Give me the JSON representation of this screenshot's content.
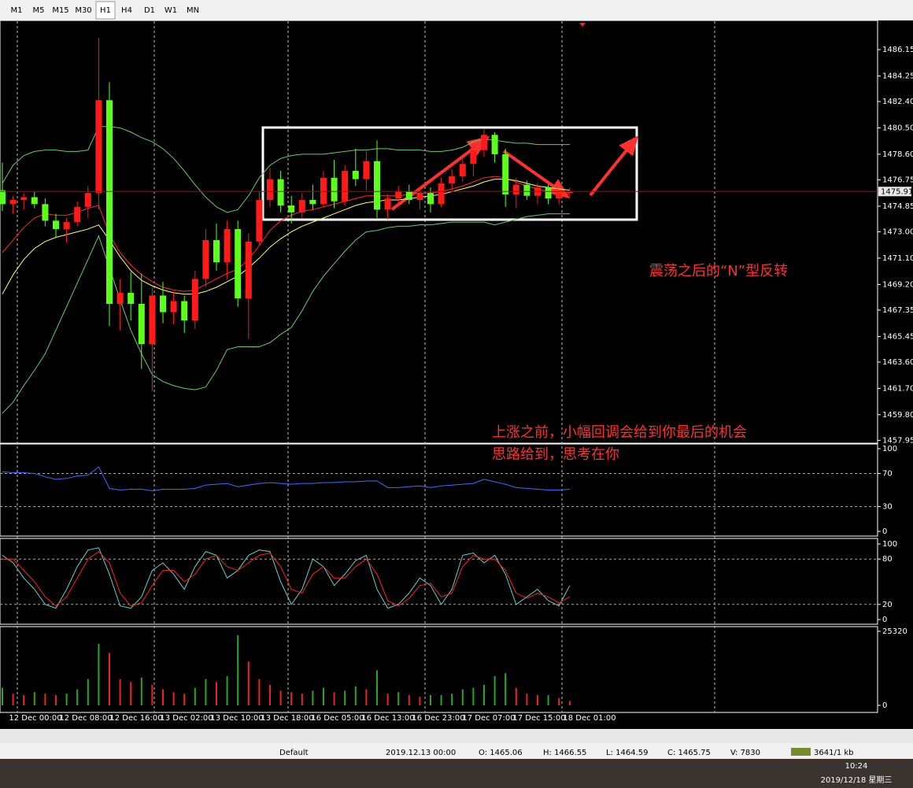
{
  "toolbar": {
    "timeframes": [
      "M1",
      "M5",
      "M15",
      "M30",
      "H1",
      "H4",
      "D1",
      "W1",
      "MN"
    ],
    "active": "H1"
  },
  "chart_data": [
    {
      "type": "candlestick",
      "up_color": "#ff1a1a",
      "down_color": "#5cff1a",
      "candles": [
        [
          1476.0,
          1478.0,
          1474.5,
          1475.0
        ],
        [
          1475.0,
          1475.6,
          1474.3,
          1475.3
        ],
        [
          1475.3,
          1475.8,
          1474.6,
          1475.5
        ],
        [
          1475.5,
          1475.9,
          1474.7,
          1475.0
        ],
        [
          1475.0,
          1475.4,
          1473.4,
          1473.8
        ],
        [
          1473.8,
          1474.3,
          1472.6,
          1473.2
        ],
        [
          1473.2,
          1474.0,
          1472.2,
          1473.7
        ],
        [
          1473.7,
          1475.2,
          1473.4,
          1474.8
        ],
        [
          1474.8,
          1476.3,
          1474.0,
          1475.8
        ],
        [
          1475.8,
          1487.0,
          1474.6,
          1482.5
        ],
        [
          1482.5,
          1483.8,
          1466.2,
          1467.8
        ],
        [
          1467.8,
          1469.6,
          1465.9,
          1468.6
        ],
        [
          1468.6,
          1470.1,
          1466.6,
          1467.8
        ],
        [
          1467.8,
          1470.0,
          1463.1,
          1464.9
        ],
        [
          1464.9,
          1469.0,
          1461.5,
          1468.4
        ],
        [
          1468.4,
          1469.4,
          1466.4,
          1467.2
        ],
        [
          1467.2,
          1468.6,
          1466.3,
          1468.0
        ],
        [
          1468.0,
          1468.4,
          1465.7,
          1466.6
        ],
        [
          1466.6,
          1470.2,
          1466.0,
          1469.6
        ],
        [
          1469.6,
          1473.2,
          1469.0,
          1472.4
        ],
        [
          1472.4,
          1473.6,
          1470.2,
          1470.8
        ],
        [
          1470.8,
          1473.8,
          1469.6,
          1473.2
        ],
        [
          1473.2,
          1473.8,
          1467.6,
          1468.2
        ],
        [
          1468.2,
          1472.9,
          1465.3,
          1472.3
        ],
        [
          1472.3,
          1475.9,
          1472.0,
          1475.3
        ],
        [
          1475.3,
          1477.6,
          1474.8,
          1476.8
        ],
        [
          1476.8,
          1477.4,
          1474.4,
          1474.9
        ],
        [
          1474.9,
          1475.6,
          1473.6,
          1474.4
        ],
        [
          1474.4,
          1475.8,
          1474.0,
          1475.3
        ],
        [
          1475.3,
          1476.4,
          1474.6,
          1475.0
        ],
        [
          1475.0,
          1477.4,
          1474.8,
          1476.9
        ],
        [
          1476.9,
          1478.2,
          1474.7,
          1475.2
        ],
        [
          1475.2,
          1477.8,
          1474.9,
          1477.4
        ],
        [
          1477.4,
          1479.0,
          1476.3,
          1476.8
        ],
        [
          1476.8,
          1478.8,
          1476.0,
          1478.1
        ],
        [
          1478.1,
          1479.6,
          1474.0,
          1474.6
        ],
        [
          1474.6,
          1475.7,
          1473.9,
          1475.4
        ],
        [
          1475.4,
          1476.3,
          1474.9,
          1475.9
        ],
        [
          1475.9,
          1476.4,
          1475.0,
          1475.3
        ],
        [
          1475.3,
          1476.2,
          1474.6,
          1475.8
        ],
        [
          1475.8,
          1476.2,
          1474.4,
          1475.0
        ],
        [
          1475.0,
          1476.9,
          1474.8,
          1476.5
        ],
        [
          1476.5,
          1477.5,
          1476.0,
          1477.0
        ],
        [
          1477.0,
          1478.4,
          1476.6,
          1477.9
        ],
        [
          1477.9,
          1479.3,
          1477.0,
          1478.9
        ],
        [
          1478.9,
          1480.4,
          1478.4,
          1480.0
        ],
        [
          1480.0,
          1480.2,
          1478.0,
          1478.6
        ],
        [
          1478.6,
          1479.0,
          1474.8,
          1475.7
        ],
        [
          1475.7,
          1476.9,
          1474.7,
          1476.4
        ],
        [
          1476.4,
          1476.7,
          1475.3,
          1475.6
        ],
        [
          1475.6,
          1476.5,
          1475.0,
          1476.2
        ],
        [
          1476.2,
          1476.4,
          1475.0,
          1475.4
        ],
        [
          1475.4,
          1476.0,
          1475.0,
          1475.8
        ],
        [
          1475.8,
          1476.2,
          1475.5,
          1475.91
        ]
      ],
      "overlays": [
        {
          "color": "#66cc66",
          "values": [
            1476.5,
            1477.8,
            1478.5,
            1478.8,
            1478.9,
            1478.9,
            1478.8,
            1478.8,
            1478.9,
            1480.6,
            1480.6,
            1480.5,
            1480.2,
            1479.8,
            1479.5,
            1479.0,
            1478.3,
            1477.4,
            1476.4,
            1475.5,
            1474.8,
            1474.4,
            1474.6,
            1475.6,
            1476.9,
            1477.8,
            1478.3,
            1478.5,
            1478.6,
            1478.6,
            1478.6,
            1478.7,
            1478.8,
            1478.9,
            1478.9,
            1479.0,
            1479.0,
            1478.9,
            1478.9,
            1478.9,
            1478.8,
            1478.8,
            1478.9,
            1479.1,
            1479.5,
            1479.7,
            1479.6,
            1479.5,
            1479.4,
            1479.4,
            1479.3,
            1479.3,
            1479.3,
            1479.3
          ]
        },
        {
          "color": "#66cc66",
          "values": [
            1459.9,
            1460.7,
            1461.9,
            1463.0,
            1464.2,
            1465.9,
            1467.6,
            1469.3,
            1471.0,
            1472.7,
            1470.4,
            1468.1,
            1465.9,
            1464.2,
            1462.7,
            1462.2,
            1461.9,
            1461.7,
            1461.6,
            1461.8,
            1463.0,
            1464.5,
            1464.7,
            1464.7,
            1464.7,
            1465.0,
            1465.6,
            1466.1,
            1467.3,
            1468.7,
            1469.8,
            1470.7,
            1471.6,
            1472.4,
            1473.0,
            1473.1,
            1473.3,
            1473.4,
            1473.4,
            1473.5,
            1473.5,
            1473.6,
            1473.7,
            1473.7,
            1473.7,
            1473.7,
            1473.5,
            1473.7,
            1473.9,
            1474.1,
            1474.2,
            1474.3,
            1474.3,
            1474.3
          ]
        },
        {
          "color": "#ff2a2a",
          "values": [
            1471.5,
            1472.4,
            1473.3,
            1474.0,
            1474.3,
            1474.2,
            1474.2,
            1474.4,
            1474.7,
            1474.9,
            1472.8,
            1471.5,
            1470.6,
            1469.9,
            1469.4,
            1469.0,
            1468.8,
            1468.7,
            1468.8,
            1469.2,
            1469.6,
            1470.0,
            1470.3,
            1471.0,
            1472.0,
            1473.1,
            1473.8,
            1474.2,
            1474.5,
            1474.6,
            1474.8,
            1475.0,
            1475.2,
            1475.4,
            1475.6,
            1475.6,
            1475.6,
            1475.6,
            1475.7,
            1475.8,
            1475.8,
            1475.9,
            1476.1,
            1476.3,
            1476.6,
            1476.9,
            1477.0,
            1476.9,
            1476.6,
            1476.3,
            1476.1,
            1475.9,
            1475.8,
            1475.7
          ]
        },
        {
          "color": "#ffff66",
          "values": [
            1468.5,
            1469.9,
            1471.0,
            1471.8,
            1472.3,
            1472.6,
            1472.8,
            1473.0,
            1473.2,
            1473.5,
            1472.4,
            1471.2,
            1470.2,
            1469.5,
            1469.1,
            1468.8,
            1468.6,
            1468.5,
            1468.5,
            1468.7,
            1469.0,
            1469.4,
            1469.8,
            1470.4,
            1471.1,
            1471.9,
            1472.5,
            1473.0,
            1473.4,
            1473.7,
            1474.0,
            1474.3,
            1474.6,
            1474.9,
            1475.1,
            1475.2,
            1475.3,
            1475.3,
            1475.4,
            1475.5,
            1475.6,
            1475.7,
            1475.9,
            1476.1,
            1476.3,
            1476.6,
            1476.8,
            1476.8,
            1476.7,
            1476.5,
            1476.3,
            1476.2,
            1476.1,
            1476.0
          ]
        }
      ],
      "ylim": [
        1457.8,
        1488.14
      ],
      "yticks": [
        1486.15,
        1484.25,
        {
          "value": 1482.4,
          "label": "1482.40"
        },
        {
          "value": 1480.5,
          "label": "1480.50"
        },
        {
          "value": 1478.6,
          "label": "1478.60"
        },
        1476.75,
        1474.85,
        {
          "value": 1473.0,
          "label": "1473.00"
        },
        {
          "value": 1471.1,
          "label": "1471.10"
        },
        {
          "value": 1469.2,
          "label": "1469.20"
        },
        1467.35,
        1465.45,
        {
          "value": 1463.6,
          "label": "1463.60"
        },
        {
          "value": 1461.7,
          "label": "1461.70"
        },
        {
          "value": 1459.8,
          "label": "1459.80"
        },
        1457.95
      ],
      "current_price": 1475.91,
      "annotations": [
        "震荡之后的“N”型反转",
        "上涨之前，小幅回调会给到你最后的机会",
        "思路给到，思考在你"
      ]
    },
    {
      "type": "line",
      "series": [
        {
          "color": "#3b6cff",
          "values": [
            72,
            71,
            71,
            70,
            66,
            63,
            64,
            67,
            68,
            78,
            52,
            50,
            51,
            51,
            49,
            51,
            51,
            51,
            52,
            56,
            57,
            58,
            54,
            56,
            58,
            59,
            58,
            57,
            58,
            58,
            59,
            59,
            60,
            60,
            61,
            61,
            53,
            53,
            54,
            55,
            53,
            55,
            56,
            57,
            58,
            63,
            60,
            57,
            53,
            52,
            51,
            50,
            50,
            51
          ]
        }
      ],
      "ylim": [
        0,
        100
      ],
      "yticks": [
        0,
        30,
        70,
        100
      ]
    },
    {
      "type": "line",
      "series": [
        {
          "color": "#5fd0d0",
          "values": [
            85,
            75,
            55,
            40,
            20,
            15,
            40,
            70,
            92,
            95,
            60,
            18,
            15,
            30,
            65,
            75,
            60,
            40,
            70,
            90,
            85,
            55,
            65,
            85,
            92,
            90,
            50,
            20,
            40,
            80,
            70,
            45,
            60,
            78,
            85,
            40,
            15,
            20,
            35,
            55,
            45,
            20,
            40,
            85,
            88,
            75,
            85,
            60,
            20,
            30,
            40,
            25,
            18,
            45
          ]
        },
        {
          "color": "#ff2020",
          "values": [
            80,
            80,
            65,
            50,
            30,
            18,
            30,
            55,
            80,
            90,
            75,
            35,
            18,
            22,
            45,
            65,
            65,
            50,
            60,
            80,
            85,
            70,
            65,
            75,
            85,
            88,
            70,
            40,
            35,
            60,
            70,
            55,
            55,
            70,
            80,
            60,
            25,
            18,
            28,
            45,
            48,
            30,
            35,
            70,
            85,
            80,
            80,
            65,
            35,
            28,
            35,
            30,
            22,
            30
          ]
        }
      ],
      "ylim": [
        0,
        100
      ],
      "yticks": [
        0,
        20,
        80,
        100
      ]
    },
    {
      "type": "bar",
      "up_color": "#22aa22",
      "down_color": "#ee2222",
      "values": [
        6000,
        4000,
        3500,
        4500,
        4000,
        3500,
        4000,
        5500,
        9000,
        21000,
        18000,
        9000,
        8000,
        9500,
        7000,
        5500,
        4500,
        4000,
        6000,
        9000,
        8000,
        10000,
        24000,
        15000,
        9000,
        7000,
        5000,
        4500,
        4000,
        5000,
        6000,
        4500,
        5000,
        6500,
        5500,
        12000,
        4000,
        4500,
        3500,
        3000,
        3500,
        3500,
        4000,
        5500,
        6000,
        7000,
        10000,
        11000,
        6000,
        4000,
        3500,
        3500,
        2500,
        1500
      ],
      "ylim": [
        0,
        25320
      ],
      "yticks": [
        0,
        25320
      ],
      "x_labels": [
        "12 Dec 00:00",
        "12 Dec 08:00",
        "12 Dec 16:00",
        "13 Dec 02:00",
        "13 Dec 10:00",
        "13 Dec 18:00",
        "16 Dec 05:00",
        "16 Dec 13:00",
        "16 Dec 23:00",
        "17 Dec 07:00",
        "17 Dec 15:00",
        "18 Dec 01:00"
      ]
    }
  ],
  "status_bar": {
    "profile": "Default",
    "time": "2019.12.13 00:00",
    "open": "O: 1465.06",
    "high": "H: 1466.55",
    "low": "L: 1464.59",
    "close": "C: 1465.75",
    "volume": "V: 7830",
    "traffic": "3641/1 kb"
  },
  "taskbar": {
    "time": "10:24",
    "date": "2019/12/18 星期三"
  }
}
